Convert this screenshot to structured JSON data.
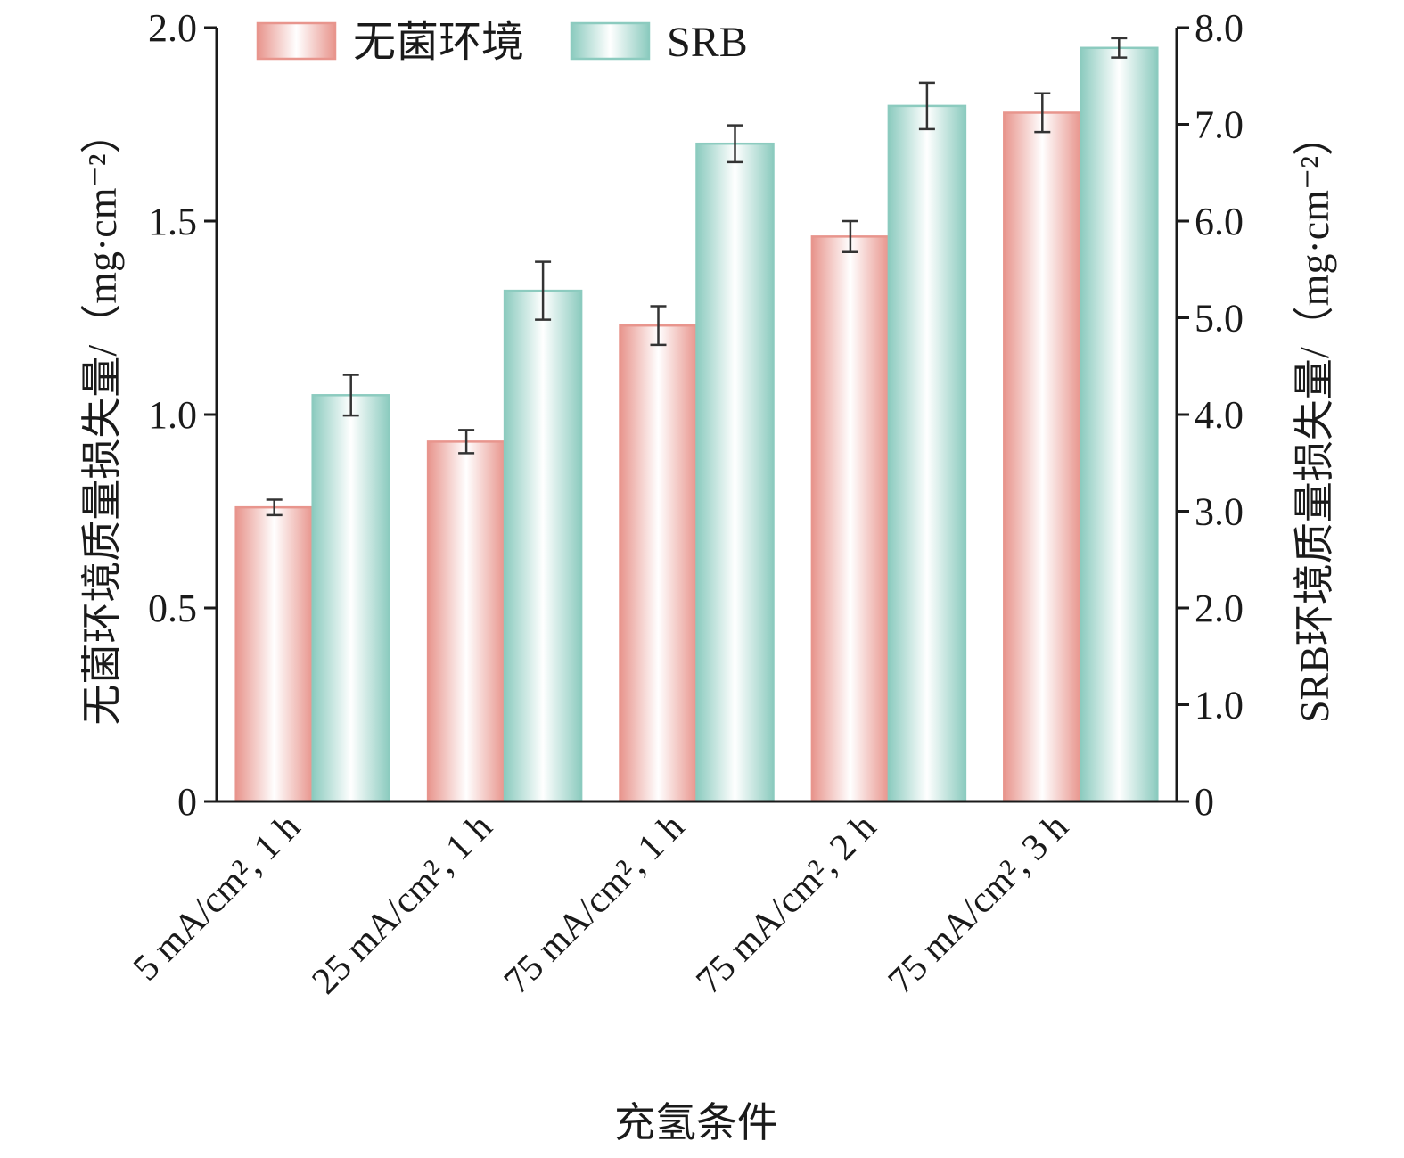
{
  "chart_data": {
    "type": "bar",
    "categories": [
      "5 mA/cm², 1 h",
      "25 mA/cm², 1 h",
      "75 mA/cm², 1 h",
      "75 mA/cm², 2 h",
      "75 mA/cm², 3 h"
    ],
    "series": [
      {
        "name": "无菌环境",
        "axis": "left",
        "values": [
          0.76,
          0.93,
          1.23,
          1.46,
          1.78
        ],
        "errors": [
          0.02,
          0.03,
          0.05,
          0.04,
          0.05
        ],
        "color": "#e8958d"
      },
      {
        "name": "SRB",
        "axis": "right",
        "values": [
          4.2,
          5.28,
          6.8,
          7.19,
          7.79
        ],
        "errors": [
          0.21,
          0.3,
          0.19,
          0.24,
          0.1
        ],
        "color": "#8ccbbf"
      }
    ],
    "ylabel": "无菌环境质量损失量/（mg·cm⁻²）",
    "ylabel_right": "SRB环境质量损失量/（mg·cm⁻²）",
    "xlabel": "充氢条件",
    "ylim": [
      0,
      2.0
    ],
    "ylim_right": [
      0,
      8.0
    ],
    "yticks": [
      "0",
      "0.5",
      "1.0",
      "1.5",
      "2.0"
    ],
    "yticks_right": [
      "0",
      "1.0",
      "2.0",
      "3.0",
      "4.0",
      "5.0",
      "6.0",
      "7.0",
      "8.0"
    ],
    "legend": "top-left",
    "grid": false
  }
}
